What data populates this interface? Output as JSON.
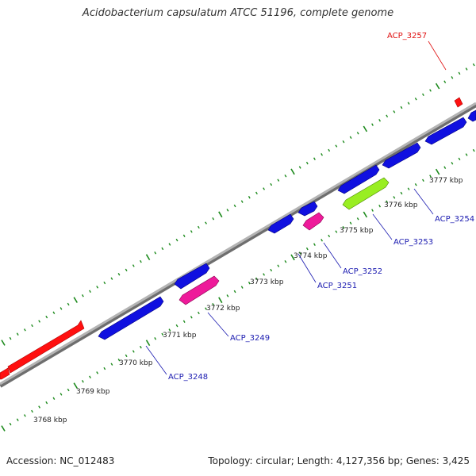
{
  "title": "Acidobacterium capsulatum ATCC 51196, complete genome",
  "footer": {
    "accession": "Accession: NC_012483",
    "summary": "Topology: circular; Length: 4,127,356 bp; Genes: 3,425"
  },
  "colors": {
    "forward_gene": "#ff1010",
    "cds_blue": "#1010e0",
    "magenta": "#ee1a9a",
    "lime": "#99ee22",
    "backbone": "#8c8c8c",
    "tick": "#1c8a1c",
    "label_blue": "#1a1ab0",
    "label_red": "#e01010"
  },
  "scale_labels": [
    "3768 kbp",
    "3769 kbp",
    "3770 kbp",
    "3771 kbp",
    "3772 kbp",
    "3773 kbp",
    "3774 kbp",
    "3775 kbp",
    "3776 kbp",
    "3777 kbp"
  ],
  "gene_labels": [
    {
      "text": "ACP_3257",
      "color": "red"
    },
    {
      "text": "ACP_3254",
      "color": "blue"
    },
    {
      "text": "ACP_3253",
      "color": "blue"
    },
    {
      "text": "ACP_3252",
      "color": "blue"
    },
    {
      "text": "ACP_3251",
      "color": "blue"
    },
    {
      "text": "ACP_3249",
      "color": "blue"
    },
    {
      "text": "ACP_3248",
      "color": "blue"
    }
  ]
}
